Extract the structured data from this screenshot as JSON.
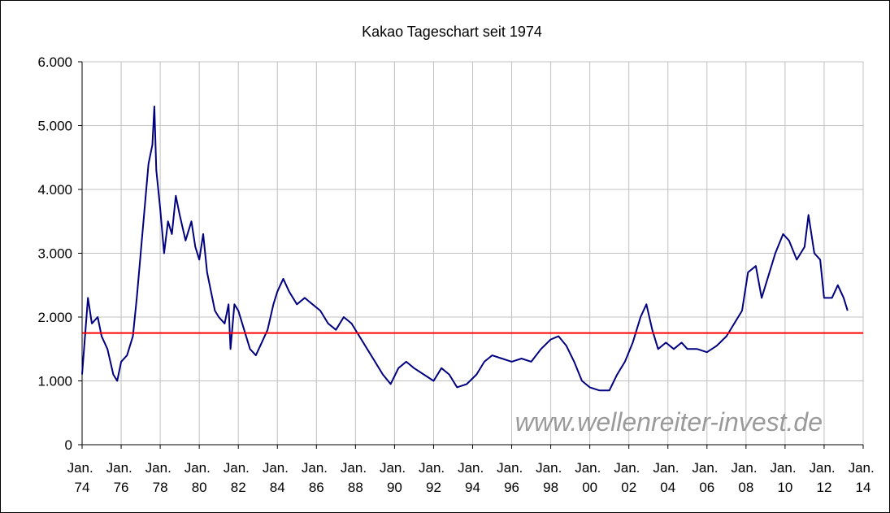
{
  "chart_data": {
    "type": "line",
    "title": "Kakao Tageschart seit 1974",
    "x": [
      1974.0,
      1974.1,
      1974.3,
      1974.5,
      1974.8,
      1975.0,
      1975.3,
      1975.6,
      1975.8,
      1976.0,
      1976.3,
      1976.6,
      1976.8,
      1977.0,
      1977.2,
      1977.4,
      1977.6,
      1977.7,
      1977.8,
      1978.0,
      1978.2,
      1978.4,
      1978.6,
      1978.8,
      1979.0,
      1979.3,
      1979.6,
      1979.8,
      1980.0,
      1980.2,
      1980.4,
      1980.6,
      1980.8,
      1981.0,
      1981.3,
      1981.5,
      1981.6,
      1981.8,
      1982.0,
      1982.3,
      1982.6,
      1982.9,
      1983.2,
      1983.5,
      1983.8,
      1984.0,
      1984.3,
      1984.6,
      1985.0,
      1985.4,
      1985.8,
      1986.2,
      1986.6,
      1987.0,
      1987.4,
      1987.8,
      1988.2,
      1988.6,
      1989.0,
      1989.4,
      1989.8,
      1990.2,
      1990.6,
      1991.0,
      1991.5,
      1992.0,
      1992.4,
      1992.8,
      1993.2,
      1993.7,
      1994.2,
      1994.6,
      1995.0,
      1995.5,
      1996.0,
      1996.5,
      1997.0,
      1997.5,
      1998.0,
      1998.4,
      1998.8,
      1999.2,
      1999.6,
      2000.0,
      2000.5,
      2001.0,
      2001.4,
      2001.8,
      2002.2,
      2002.6,
      2002.9,
      2003.2,
      2003.5,
      2003.9,
      2004.3,
      2004.7,
      2005.0,
      2005.5,
      2006.0,
      2006.5,
      2007.0,
      2007.4,
      2007.8,
      2008.1,
      2008.5,
      2008.8,
      2009.1,
      2009.5,
      2009.9,
      2010.2,
      2010.6,
      2011.0,
      2011.2,
      2011.5,
      2011.8,
      2012.0,
      2012.4,
      2012.7,
      2013.0,
      2013.2
    ],
    "series": [
      {
        "color": "#000080",
        "values": [
          1100,
          1500,
          2300,
          1900,
          2000,
          1700,
          1500,
          1100,
          1000,
          1300,
          1400,
          1700,
          2300,
          3000,
          3700,
          4400,
          4700,
          5300,
          4300,
          3700,
          3000,
          3500,
          3300,
          3900,
          3600,
          3200,
          3500,
          3100,
          2900,
          3300,
          2700,
          2400,
          2100,
          2000,
          1900,
          2200,
          1500,
          2200,
          2100,
          1800,
          1500,
          1400,
          1600,
          1800,
          2200,
          2400,
          2600,
          2400,
          2200,
          2300,
          2200,
          2100,
          1900,
          1800,
          2000,
          1900,
          1700,
          1500,
          1300,
          1100,
          950,
          1200,
          1300,
          1200,
          1100,
          1000,
          1200,
          1100,
          900,
          950,
          1100,
          1300,
          1400,
          1350,
          1300,
          1350,
          1300,
          1500,
          1650,
          1700,
          1550,
          1300,
          1000,
          900,
          850,
          850,
          1100,
          1300,
          1600,
          2000,
          2200,
          1800,
          1500,
          1600,
          1500,
          1600,
          1500,
          1500,
          1450,
          1550,
          1700,
          1900,
          2100,
          2700,
          2800,
          2300,
          2600,
          3000,
          3300,
          3200,
          2900,
          3100,
          3600,
          3000,
          2900,
          2300,
          2300,
          2500,
          2300,
          2100
        ]
      }
    ],
    "reference_line": {
      "value": 1750,
      "color": "#ff0000"
    },
    "annotation": "www.wellenreiter-invest.de",
    "xlim": [
      1974,
      2014
    ],
    "xticks": [
      {
        "value": 1974,
        "label": "Jan. 74"
      },
      {
        "value": 1976,
        "label": "Jan. 76"
      },
      {
        "value": 1978,
        "label": "Jan. 78"
      },
      {
        "value": 1980,
        "label": "Jan. 80"
      },
      {
        "value": 1982,
        "label": "Jan. 82"
      },
      {
        "value": 1984,
        "label": "Jan. 84"
      },
      {
        "value": 1986,
        "label": "Jan. 86"
      },
      {
        "value": 1988,
        "label": "Jan. 88"
      },
      {
        "value": 1990,
        "label": "Jan. 90"
      },
      {
        "value": 1992,
        "label": "Jan. 92"
      },
      {
        "value": 1994,
        "label": "Jan. 94"
      },
      {
        "value": 1996,
        "label": "Jan. 96"
      },
      {
        "value": 1998,
        "label": "Jan. 98"
      },
      {
        "value": 2000,
        "label": "Jan. 00"
      },
      {
        "value": 2002,
        "label": "Jan. 02"
      },
      {
        "value": 2004,
        "label": "Jan. 04"
      },
      {
        "value": 2006,
        "label": "Jan. 06"
      },
      {
        "value": 2008,
        "label": "Jan. 08"
      },
      {
        "value": 2010,
        "label": "Jan. 10"
      },
      {
        "value": 2012,
        "label": "Jan. 12"
      },
      {
        "value": 2014,
        "label": "Jan. 14"
      }
    ],
    "ylim": [
      0,
      6000
    ],
    "yticks": [
      0,
      {
        "value": 1000,
        "label": "1.000"
      },
      {
        "value": 2000,
        "label": "2.000"
      },
      {
        "value": 3000,
        "label": "3.000"
      },
      {
        "value": 4000,
        "label": "4.000"
      },
      {
        "value": 5000,
        "label": "5.000"
      },
      {
        "value": 6000,
        "label": "6.000"
      }
    ],
    "grid": true
  }
}
